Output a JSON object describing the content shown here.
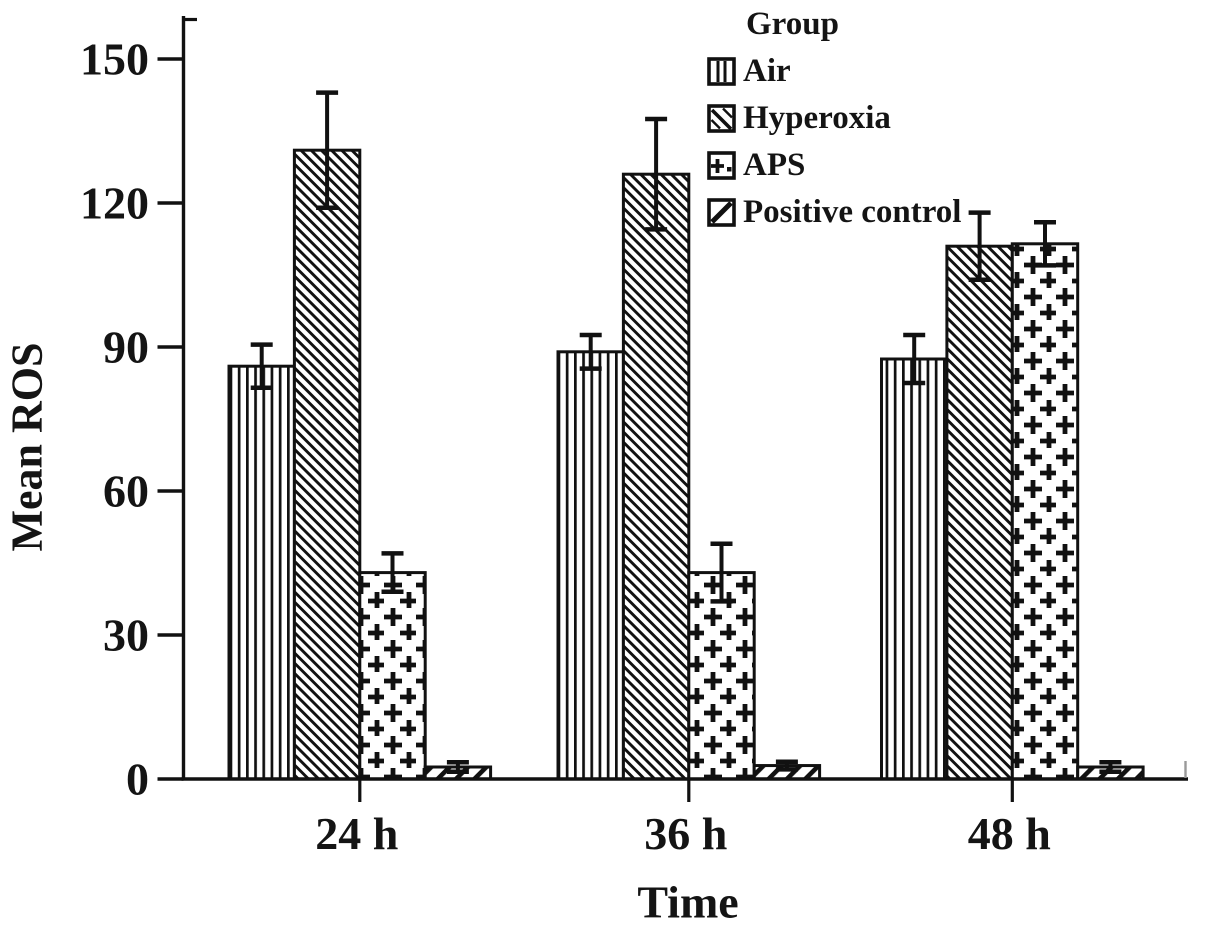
{
  "chart_data": {
    "type": "bar",
    "title": "",
    "xlabel": "Time",
    "ylabel": "Mean ROS",
    "categories": [
      "24 h",
      "36 h",
      "48 h"
    ],
    "yticks": [
      0,
      30,
      60,
      90,
      120,
      150
    ],
    "ylim": [
      0,
      160
    ],
    "grid": false,
    "error_bars": true,
    "legend_title": "Group",
    "legend_position": "upper-right",
    "series": [
      {
        "name": "Air",
        "pattern": "vertical-lines",
        "values": [
          86,
          89,
          87.5
        ],
        "errors": [
          4.5,
          3.5,
          5
        ]
      },
      {
        "name": "Hyperoxia",
        "pattern": "diagonal-down-hatch",
        "values": [
          131,
          126,
          111
        ],
        "errors": [
          12,
          11.5,
          7
        ]
      },
      {
        "name": "APS",
        "pattern": "plus-cross-hatch",
        "values": [
          43,
          43,
          111.5
        ],
        "errors": [
          4,
          6,
          4.5
        ]
      },
      {
        "name": "Positive control",
        "pattern": "diagonal-up-hatch",
        "values": [
          2.5,
          2.8,
          2.5
        ],
        "errors": [
          1,
          0.8,
          1
        ]
      }
    ],
    "colors": {
      "ink": "#111111",
      "background": "#ffffff"
    }
  }
}
